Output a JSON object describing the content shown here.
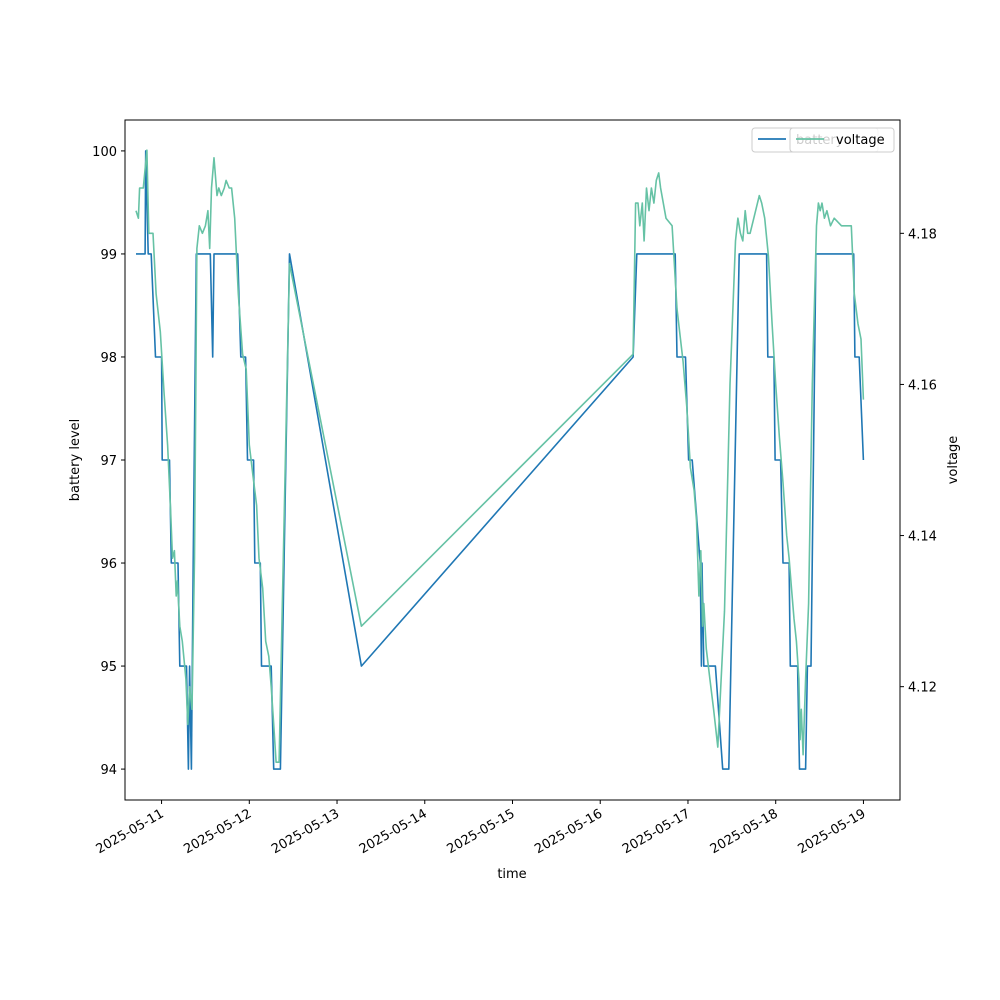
{
  "chart_data": {
    "type": "line",
    "xlabel": "time",
    "ylabel_left": "battery level",
    "ylabel_right": "voltage",
    "x_tick_labels": [
      "2025-05-11",
      "2025-05-12",
      "2025-05-13",
      "2025-05-14",
      "2025-05-15",
      "2025-05-16",
      "2025-05-17",
      "2025-05-18",
      "2025-05-19"
    ],
    "y_left_ticks": [
      "94",
      "95",
      "96",
      "97",
      "98",
      "99",
      "100"
    ],
    "y_right_ticks": [
      "4.12",
      "4.14",
      "4.16",
      "4.18"
    ],
    "xlim": [
      "2025-05-10 14:00",
      "2025-05-19 10:00"
    ],
    "ylim_left": [
      93.7,
      100.3
    ],
    "ylim_right": [
      4.105,
      4.195
    ],
    "grid": false,
    "legend_placement": "top-right",
    "series": [
      {
        "name": "battery",
        "axis": "left",
        "color": "#1f77b4",
        "points": [
          [
            "2025-05-10 17:00",
            99
          ],
          [
            "2025-05-10 19:30",
            99
          ],
          [
            "2025-05-10 19:40",
            100
          ],
          [
            "2025-05-10 20:20",
            99
          ],
          [
            "2025-05-10 21:10",
            99
          ],
          [
            "2025-05-10 22:20",
            98
          ],
          [
            "2025-05-11 00:00",
            98
          ],
          [
            "2025-05-11 00:10",
            97
          ],
          [
            "2025-05-11 02:10",
            97
          ],
          [
            "2025-05-11 02:40",
            96
          ],
          [
            "2025-05-11 04:30",
            96
          ],
          [
            "2025-05-11 05:00",
            95
          ],
          [
            "2025-05-11 06:50",
            95
          ],
          [
            "2025-05-11 07:20",
            94
          ],
          [
            "2025-05-11 07:40",
            95
          ],
          [
            "2025-05-11 08:10",
            94
          ],
          [
            "2025-05-11 08:40",
            96
          ],
          [
            "2025-05-11 09:30",
            99
          ],
          [
            "2025-05-11 13:20",
            99
          ],
          [
            "2025-05-11 14:00",
            98
          ],
          [
            "2025-05-11 14:20",
            99
          ],
          [
            "2025-05-11 20:50",
            99
          ],
          [
            "2025-05-11 21:40",
            98
          ],
          [
            "2025-05-11 23:00",
            98
          ],
          [
            "2025-05-11 23:30",
            97
          ],
          [
            "2025-05-12 01:10",
            97
          ],
          [
            "2025-05-12 01:30",
            96
          ],
          [
            "2025-05-12 03:00",
            96
          ],
          [
            "2025-05-12 03:20",
            95
          ],
          [
            "2025-05-12 06:00",
            95
          ],
          [
            "2025-05-12 06:40",
            94
          ],
          [
            "2025-05-12 08:30",
            94
          ],
          [
            "2025-05-12 11:00",
            99
          ],
          [
            "2025-05-13 06:40",
            95
          ],
          [
            "2025-05-16 09:00",
            98
          ],
          [
            "2025-05-16 10:00",
            99
          ],
          [
            "2025-05-16 20:30",
            99
          ],
          [
            "2025-05-16 21:00",
            98
          ],
          [
            "2025-05-16 23:20",
            98
          ],
          [
            "2025-05-17 00:10",
            97
          ],
          [
            "2025-05-17 01:10",
            97
          ],
          [
            "2025-05-17 03:20",
            96
          ],
          [
            "2025-05-17 03:40",
            95
          ],
          [
            "2025-05-17 03:50",
            96
          ],
          [
            "2025-05-17 04:20",
            95
          ],
          [
            "2025-05-17 07:30",
            95
          ],
          [
            "2025-05-17 09:30",
            94
          ],
          [
            "2025-05-17 11:10",
            94
          ],
          [
            "2025-05-17 14:00",
            99
          ],
          [
            "2025-05-17 21:30",
            99
          ],
          [
            "2025-05-17 21:50",
            98
          ],
          [
            "2025-05-17 23:30",
            98
          ],
          [
            "2025-05-17 23:50",
            97
          ],
          [
            "2025-05-18 01:20",
            97
          ],
          [
            "2025-05-18 02:00",
            96
          ],
          [
            "2025-05-18 03:40",
            96
          ],
          [
            "2025-05-18 04:00",
            95
          ],
          [
            "2025-05-18 06:00",
            95
          ],
          [
            "2025-05-18 06:30",
            94
          ],
          [
            "2025-05-18 08:10",
            94
          ],
          [
            "2025-05-18 08:40",
            95
          ],
          [
            "2025-05-18 09:40",
            95
          ],
          [
            "2025-05-18 11:00",
            99
          ],
          [
            "2025-05-18 21:20",
            99
          ],
          [
            "2025-05-18 21:40",
            98
          ],
          [
            "2025-05-18 22:50",
            98
          ],
          [
            "2025-05-19 00:00",
            97
          ]
        ]
      },
      {
        "name": "voltage",
        "axis": "right",
        "color": "#66c2a5",
        "points": [
          [
            "2025-05-10 17:00",
            4.183
          ],
          [
            "2025-05-10 17:40",
            4.182
          ],
          [
            "2025-05-10 18:00",
            4.186
          ],
          [
            "2025-05-10 19:00",
            4.186
          ],
          [
            "2025-05-10 20:00",
            4.191
          ],
          [
            "2025-05-10 20:30",
            4.18
          ],
          [
            "2025-05-10 21:40",
            4.18
          ],
          [
            "2025-05-10 22:30",
            4.172
          ],
          [
            "2025-05-10 23:40",
            4.167
          ],
          [
            "2025-05-11 00:40",
            4.159
          ],
          [
            "2025-05-11 01:40",
            4.152
          ],
          [
            "2025-05-11 02:30",
            4.143
          ],
          [
            "2025-05-11 03:00",
            4.137
          ],
          [
            "2025-05-11 03:30",
            4.138
          ],
          [
            "2025-05-11 04:00",
            4.132
          ],
          [
            "2025-05-11 04:20",
            4.134
          ],
          [
            "2025-05-11 05:00",
            4.128
          ],
          [
            "2025-05-11 05:40",
            4.126
          ],
          [
            "2025-05-11 06:40",
            4.121
          ],
          [
            "2025-05-11 07:10",
            4.115
          ],
          [
            "2025-05-11 07:40",
            4.12
          ],
          [
            "2025-05-11 08:20",
            4.117
          ],
          [
            "2025-05-11 09:00",
            4.137
          ],
          [
            "2025-05-11 09:40",
            4.178
          ],
          [
            "2025-05-11 10:20",
            4.181
          ],
          [
            "2025-05-11 11:10",
            4.18
          ],
          [
            "2025-05-11 12:00",
            4.181
          ],
          [
            "2025-05-11 12:40",
            4.183
          ],
          [
            "2025-05-11 13:10",
            4.178
          ],
          [
            "2025-05-11 13:40",
            4.186
          ],
          [
            "2025-05-11 14:20",
            4.19
          ],
          [
            "2025-05-11 15:10",
            4.185
          ],
          [
            "2025-05-11 15:40",
            4.186
          ],
          [
            "2025-05-11 16:20",
            4.185
          ],
          [
            "2025-05-11 17:10",
            4.186
          ],
          [
            "2025-05-11 17:40",
            4.187
          ],
          [
            "2025-05-11 18:30",
            4.186
          ],
          [
            "2025-05-11 19:10",
            4.186
          ],
          [
            "2025-05-11 20:00",
            4.182
          ],
          [
            "2025-05-11 21:00",
            4.172
          ],
          [
            "2025-05-11 22:10",
            4.164
          ],
          [
            "2025-05-11 23:10",
            4.162
          ],
          [
            "2025-05-12 00:00",
            4.152
          ],
          [
            "2025-05-12 01:00",
            4.148
          ],
          [
            "2025-05-12 02:00",
            4.144
          ],
          [
            "2025-05-12 02:40",
            4.137
          ],
          [
            "2025-05-12 03:40",
            4.133
          ],
          [
            "2025-05-12 04:30",
            4.126
          ],
          [
            "2025-05-12 05:20",
            4.124
          ],
          [
            "2025-05-12 06:00",
            4.12
          ],
          [
            "2025-05-12 06:40",
            4.115
          ],
          [
            "2025-05-12 07:20",
            4.11
          ],
          [
            "2025-05-12 08:10",
            4.11
          ],
          [
            "2025-05-12 09:00",
            4.13
          ],
          [
            "2025-05-12 11:00",
            4.176
          ],
          [
            "2025-05-13 06:40",
            4.128
          ],
          [
            "2025-05-16 09:00",
            4.164
          ],
          [
            "2025-05-16 09:40",
            4.184
          ],
          [
            "2025-05-16 10:20",
            4.184
          ],
          [
            "2025-05-16 10:50",
            4.181
          ],
          [
            "2025-05-16 11:30",
            4.184
          ],
          [
            "2025-05-16 12:00",
            4.179
          ],
          [
            "2025-05-16 12:40",
            4.186
          ],
          [
            "2025-05-16 13:20",
            4.183
          ],
          [
            "2025-05-16 14:00",
            4.186
          ],
          [
            "2025-05-16 14:40",
            4.184
          ],
          [
            "2025-05-16 15:20",
            4.187
          ],
          [
            "2025-05-16 16:00",
            4.188
          ],
          [
            "2025-05-16 16:30",
            4.186
          ],
          [
            "2025-05-16 18:00",
            4.182
          ],
          [
            "2025-05-16 19:40",
            4.181
          ],
          [
            "2025-05-16 21:00",
            4.17
          ],
          [
            "2025-05-16 22:40",
            4.163
          ],
          [
            "2025-05-16 23:40",
            4.157
          ],
          [
            "2025-05-17 00:40",
            4.149
          ],
          [
            "2025-05-17 01:40",
            4.146
          ],
          [
            "2025-05-17 02:20",
            4.142
          ],
          [
            "2025-05-17 03:00",
            4.132
          ],
          [
            "2025-05-17 03:30",
            4.138
          ],
          [
            "2025-05-17 04:00",
            4.128
          ],
          [
            "2025-05-17 04:20",
            4.131
          ],
          [
            "2025-05-17 05:00",
            4.125
          ],
          [
            "2025-05-17 06:00",
            4.121
          ],
          [
            "2025-05-17 07:00",
            4.117
          ],
          [
            "2025-05-17 08:10",
            4.112
          ],
          [
            "2025-05-17 10:00",
            4.13
          ],
          [
            "2025-05-17 11:30",
            4.16
          ],
          [
            "2025-05-17 13:00",
            4.179
          ],
          [
            "2025-05-17 13:40",
            4.182
          ],
          [
            "2025-05-17 14:20",
            4.18
          ],
          [
            "2025-05-17 15:00",
            4.179
          ],
          [
            "2025-05-17 15:40",
            4.183
          ],
          [
            "2025-05-17 16:20",
            4.18
          ],
          [
            "2025-05-17 17:00",
            4.18
          ],
          [
            "2025-05-17 18:00",
            4.182
          ],
          [
            "2025-05-17 19:30",
            4.185
          ],
          [
            "2025-05-17 20:10",
            4.184
          ],
          [
            "2025-05-17 21:00",
            4.182
          ],
          [
            "2025-05-17 22:00",
            4.177
          ],
          [
            "2025-05-17 23:00",
            4.168
          ],
          [
            "2025-05-18 00:00",
            4.16
          ],
          [
            "2025-05-18 01:00",
            4.153
          ],
          [
            "2025-05-18 02:00",
            4.147
          ],
          [
            "2025-05-18 03:00",
            4.14
          ],
          [
            "2025-05-18 03:40",
            4.137
          ],
          [
            "2025-05-18 04:20",
            4.133
          ],
          [
            "2025-05-18 05:00",
            4.129
          ],
          [
            "2025-05-18 05:40",
            4.126
          ],
          [
            "2025-05-18 06:20",
            4.121
          ],
          [
            "2025-05-18 06:40",
            4.113
          ],
          [
            "2025-05-18 07:00",
            4.117
          ],
          [
            "2025-05-18 07:30",
            4.111
          ],
          [
            "2025-05-18 08:10",
            4.121
          ],
          [
            "2025-05-18 09:00",
            4.131
          ],
          [
            "2025-05-18 10:00",
            4.16
          ],
          [
            "2025-05-18 11:10",
            4.181
          ],
          [
            "2025-05-18 11:40",
            4.184
          ],
          [
            "2025-05-18 12:10",
            4.183
          ],
          [
            "2025-05-18 12:40",
            4.184
          ],
          [
            "2025-05-18 13:20",
            4.182
          ],
          [
            "2025-05-18 14:00",
            4.183
          ],
          [
            "2025-05-18 15:00",
            4.181
          ],
          [
            "2025-05-18 16:00",
            4.182
          ],
          [
            "2025-05-18 18:00",
            4.181
          ],
          [
            "2025-05-18 20:40",
            4.181
          ],
          [
            "2025-05-18 21:30",
            4.172
          ],
          [
            "2025-05-18 22:30",
            4.168
          ],
          [
            "2025-05-18 23:20",
            4.166
          ],
          [
            "2025-05-19 00:00",
            4.158
          ]
        ]
      }
    ]
  }
}
